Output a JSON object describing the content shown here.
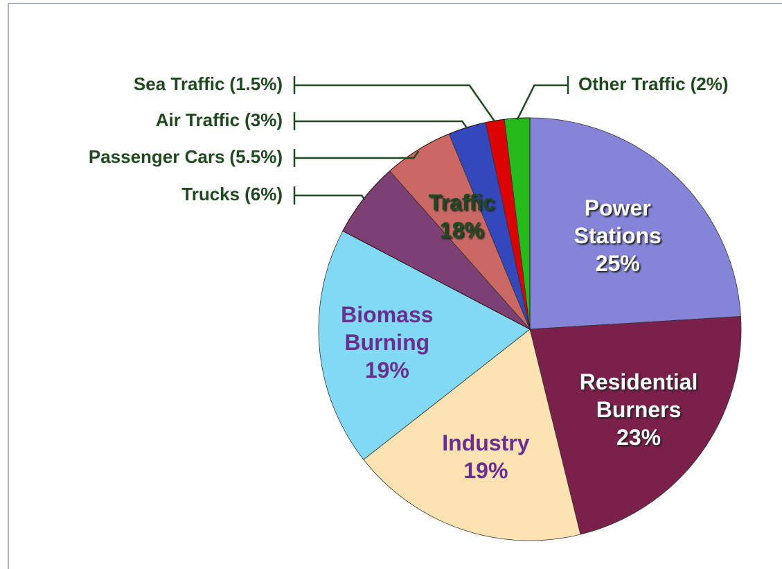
{
  "chart_data": {
    "type": "pie",
    "categories": [
      "Power Stations",
      "Residential Burners",
      "Industry",
      "Biomass Burning"
    ],
    "values": [
      25,
      23,
      19,
      19
    ],
    "value_labels": [
      "25%",
      "23%",
      "19%",
      "19%"
    ],
    "colors": [
      "#8584d9",
      "#7b1f4b",
      "#fde2b2",
      "#82d9f4"
    ],
    "label_colors": [
      "#ffffff",
      "#ffffff",
      "#6a2d92",
      "#6a2d92"
    ],
    "groups": [
      {
        "name": "Traffic",
        "value": 18,
        "value_label": "18%",
        "label_color": "#1f4a1f",
        "categories": [
          "Trucks",
          "Passenger Cars",
          "Air Traffic",
          "Sea Traffic",
          "Other Traffic"
        ],
        "values": [
          6,
          5.5,
          3,
          1.5,
          2
        ],
        "value_labels": [
          "(6%)",
          "(5.5%)",
          "(3%)",
          "(1.5%)",
          "(2%)"
        ],
        "colors": [
          "#8b4a8c",
          "#e97a7a",
          "#3354e3",
          "#ff0000",
          "#22e022"
        ]
      }
    ]
  }
}
